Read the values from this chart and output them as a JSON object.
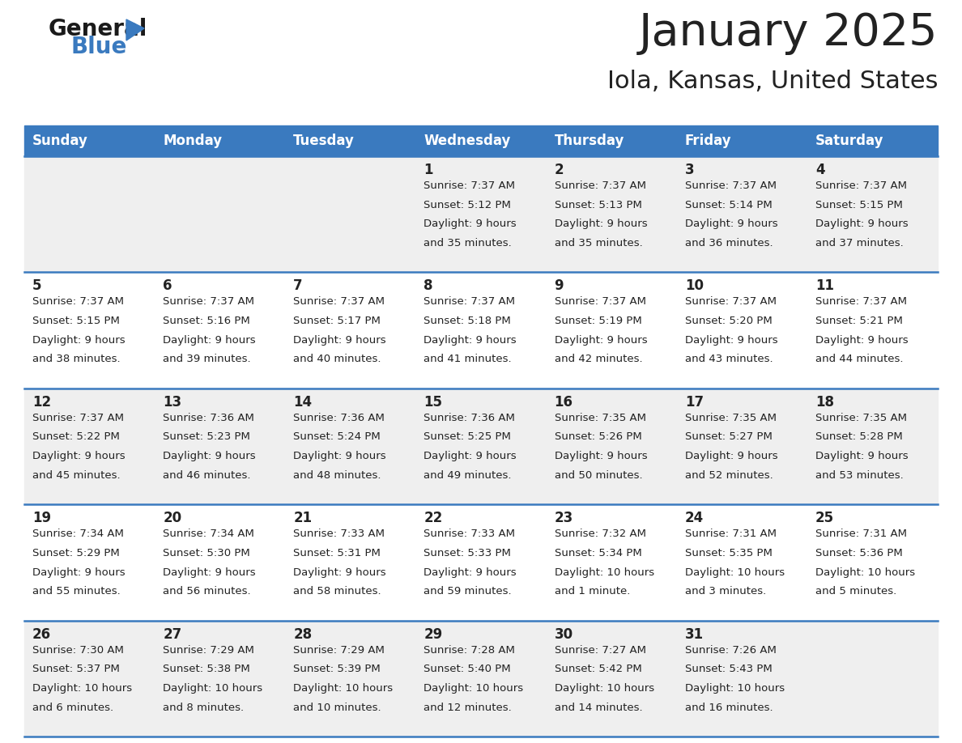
{
  "title": "January 2025",
  "subtitle": "Iola, Kansas, United States",
  "header_color": "#3a7abf",
  "header_text_color": "#ffffff",
  "day_names": [
    "Sunday",
    "Monday",
    "Tuesday",
    "Wednesday",
    "Thursday",
    "Friday",
    "Saturday"
  ],
  "bg_color": "#ffffff",
  "row_bg_colors": [
    "#efefef",
    "#ffffff",
    "#efefef",
    "#ffffff",
    "#efefef"
  ],
  "row_line_color": "#3a7abf",
  "text_color": "#222222",
  "days": [
    {
      "date": 1,
      "col": 3,
      "row": 0,
      "sunrise": "7:37 AM",
      "sunset": "5:12 PM",
      "daylight_line1": "9 hours",
      "daylight_line2": "and 35 minutes."
    },
    {
      "date": 2,
      "col": 4,
      "row": 0,
      "sunrise": "7:37 AM",
      "sunset": "5:13 PM",
      "daylight_line1": "9 hours",
      "daylight_line2": "and 35 minutes."
    },
    {
      "date": 3,
      "col": 5,
      "row": 0,
      "sunrise": "7:37 AM",
      "sunset": "5:14 PM",
      "daylight_line1": "9 hours",
      "daylight_line2": "and 36 minutes."
    },
    {
      "date": 4,
      "col": 6,
      "row": 0,
      "sunrise": "7:37 AM",
      "sunset": "5:15 PM",
      "daylight_line1": "9 hours",
      "daylight_line2": "and 37 minutes."
    },
    {
      "date": 5,
      "col": 0,
      "row": 1,
      "sunrise": "7:37 AM",
      "sunset": "5:15 PM",
      "daylight_line1": "9 hours",
      "daylight_line2": "and 38 minutes."
    },
    {
      "date": 6,
      "col": 1,
      "row": 1,
      "sunrise": "7:37 AM",
      "sunset": "5:16 PM",
      "daylight_line1": "9 hours",
      "daylight_line2": "and 39 minutes."
    },
    {
      "date": 7,
      "col": 2,
      "row": 1,
      "sunrise": "7:37 AM",
      "sunset": "5:17 PM",
      "daylight_line1": "9 hours",
      "daylight_line2": "and 40 minutes."
    },
    {
      "date": 8,
      "col": 3,
      "row": 1,
      "sunrise": "7:37 AM",
      "sunset": "5:18 PM",
      "daylight_line1": "9 hours",
      "daylight_line2": "and 41 minutes."
    },
    {
      "date": 9,
      "col": 4,
      "row": 1,
      "sunrise": "7:37 AM",
      "sunset": "5:19 PM",
      "daylight_line1": "9 hours",
      "daylight_line2": "and 42 minutes."
    },
    {
      "date": 10,
      "col": 5,
      "row": 1,
      "sunrise": "7:37 AM",
      "sunset": "5:20 PM",
      "daylight_line1": "9 hours",
      "daylight_line2": "and 43 minutes."
    },
    {
      "date": 11,
      "col": 6,
      "row": 1,
      "sunrise": "7:37 AM",
      "sunset": "5:21 PM",
      "daylight_line1": "9 hours",
      "daylight_line2": "and 44 minutes."
    },
    {
      "date": 12,
      "col": 0,
      "row": 2,
      "sunrise": "7:37 AM",
      "sunset": "5:22 PM",
      "daylight_line1": "9 hours",
      "daylight_line2": "and 45 minutes."
    },
    {
      "date": 13,
      "col": 1,
      "row": 2,
      "sunrise": "7:36 AM",
      "sunset": "5:23 PM",
      "daylight_line1": "9 hours",
      "daylight_line2": "and 46 minutes."
    },
    {
      "date": 14,
      "col": 2,
      "row": 2,
      "sunrise": "7:36 AM",
      "sunset": "5:24 PM",
      "daylight_line1": "9 hours",
      "daylight_line2": "and 48 minutes."
    },
    {
      "date": 15,
      "col": 3,
      "row": 2,
      "sunrise": "7:36 AM",
      "sunset": "5:25 PM",
      "daylight_line1": "9 hours",
      "daylight_line2": "and 49 minutes."
    },
    {
      "date": 16,
      "col": 4,
      "row": 2,
      "sunrise": "7:35 AM",
      "sunset": "5:26 PM",
      "daylight_line1": "9 hours",
      "daylight_line2": "and 50 minutes."
    },
    {
      "date": 17,
      "col": 5,
      "row": 2,
      "sunrise": "7:35 AM",
      "sunset": "5:27 PM",
      "daylight_line1": "9 hours",
      "daylight_line2": "and 52 minutes."
    },
    {
      "date": 18,
      "col": 6,
      "row": 2,
      "sunrise": "7:35 AM",
      "sunset": "5:28 PM",
      "daylight_line1": "9 hours",
      "daylight_line2": "and 53 minutes."
    },
    {
      "date": 19,
      "col": 0,
      "row": 3,
      "sunrise": "7:34 AM",
      "sunset": "5:29 PM",
      "daylight_line1": "9 hours",
      "daylight_line2": "and 55 minutes."
    },
    {
      "date": 20,
      "col": 1,
      "row": 3,
      "sunrise": "7:34 AM",
      "sunset": "5:30 PM",
      "daylight_line1": "9 hours",
      "daylight_line2": "and 56 minutes."
    },
    {
      "date": 21,
      "col": 2,
      "row": 3,
      "sunrise": "7:33 AM",
      "sunset": "5:31 PM",
      "daylight_line1": "9 hours",
      "daylight_line2": "and 58 minutes."
    },
    {
      "date": 22,
      "col": 3,
      "row": 3,
      "sunrise": "7:33 AM",
      "sunset": "5:33 PM",
      "daylight_line1": "9 hours",
      "daylight_line2": "and 59 minutes."
    },
    {
      "date": 23,
      "col": 4,
      "row": 3,
      "sunrise": "7:32 AM",
      "sunset": "5:34 PM",
      "daylight_line1": "10 hours",
      "daylight_line2": "and 1 minute."
    },
    {
      "date": 24,
      "col": 5,
      "row": 3,
      "sunrise": "7:31 AM",
      "sunset": "5:35 PM",
      "daylight_line1": "10 hours",
      "daylight_line2": "and 3 minutes."
    },
    {
      "date": 25,
      "col": 6,
      "row": 3,
      "sunrise": "7:31 AM",
      "sunset": "5:36 PM",
      "daylight_line1": "10 hours",
      "daylight_line2": "and 5 minutes."
    },
    {
      "date": 26,
      "col": 0,
      "row": 4,
      "sunrise": "7:30 AM",
      "sunset": "5:37 PM",
      "daylight_line1": "10 hours",
      "daylight_line2": "and 6 minutes."
    },
    {
      "date": 27,
      "col": 1,
      "row": 4,
      "sunrise": "7:29 AM",
      "sunset": "5:38 PM",
      "daylight_line1": "10 hours",
      "daylight_line2": "and 8 minutes."
    },
    {
      "date": 28,
      "col": 2,
      "row": 4,
      "sunrise": "7:29 AM",
      "sunset": "5:39 PM",
      "daylight_line1": "10 hours",
      "daylight_line2": "and 10 minutes."
    },
    {
      "date": 29,
      "col": 3,
      "row": 4,
      "sunrise": "7:28 AM",
      "sunset": "5:40 PM",
      "daylight_line1": "10 hours",
      "daylight_line2": "and 12 minutes."
    },
    {
      "date": 30,
      "col": 4,
      "row": 4,
      "sunrise": "7:27 AM",
      "sunset": "5:42 PM",
      "daylight_line1": "10 hours",
      "daylight_line2": "and 14 minutes."
    },
    {
      "date": 31,
      "col": 5,
      "row": 4,
      "sunrise": "7:26 AM",
      "sunset": "5:43 PM",
      "daylight_line1": "10 hours",
      "daylight_line2": "and 16 minutes."
    }
  ]
}
